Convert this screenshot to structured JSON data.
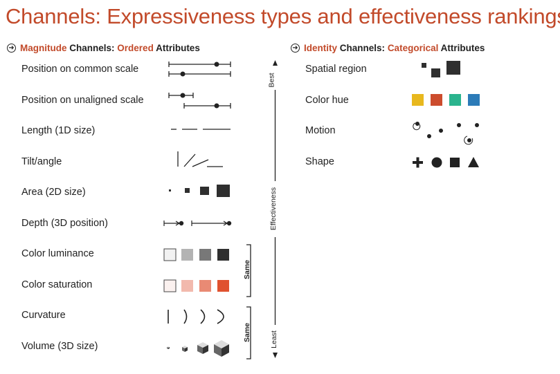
{
  "title": "Channels: Expressiveness types and effectiveness rankings",
  "magnitude": {
    "prefix": "Magnitude",
    "middle": "Channels:",
    "type": "Ordered",
    "suffix": "Attributes",
    "rows": [
      {
        "label": "Position on common scale"
      },
      {
        "label": "Position on unaligned scale"
      },
      {
        "label": "Length (1D size)"
      },
      {
        "label": "Tilt/angle"
      },
      {
        "label": "Area (2D size)"
      },
      {
        "label": "Depth (3D position)"
      },
      {
        "label": "Color luminance"
      },
      {
        "label": "Color saturation"
      },
      {
        "label": "Curvature"
      },
      {
        "label": "Volume (3D size)"
      }
    ]
  },
  "identity": {
    "prefix": "Identity",
    "middle": "Channels:",
    "type": "Categorical",
    "suffix": "Attributes",
    "rows": [
      {
        "label": "Spatial region"
      },
      {
        "label": "Color hue"
      },
      {
        "label": "Motion"
      },
      {
        "label": "Shape"
      }
    ]
  },
  "effectiveness_axis": {
    "top": "Best",
    "middle": "Effectiveness",
    "bottom": "Least"
  },
  "same_brackets": [
    "Same",
    "Same"
  ],
  "colors": {
    "accent": "#c24a2a",
    "luminance": [
      "#f2f2f2",
      "#b3b3b3",
      "#787878",
      "#2f2f2f"
    ],
    "saturation": [
      "#fbf1ef",
      "#f2b9ad",
      "#e98a74",
      "#e0522f"
    ],
    "hue": [
      "#e8b81e",
      "#cc4c2d",
      "#2bb48e",
      "#2c7bb8"
    ]
  }
}
